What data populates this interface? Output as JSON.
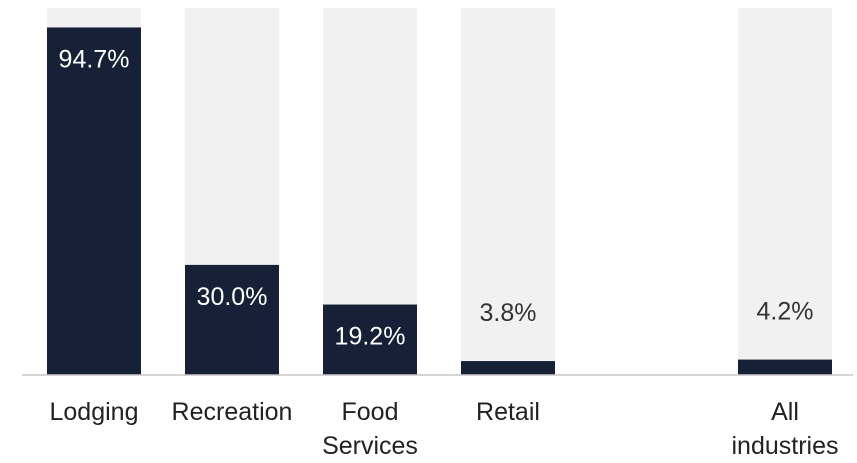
{
  "colors": {
    "bar": "#162036",
    "track": "#f1f1f1",
    "axis": "#c8c8c8",
    "label_on_bar": "#ffffff",
    "label_off_bar": "#333333"
  },
  "chart_data": {
    "type": "bar",
    "categories": [
      [
        "Lodging"
      ],
      [
        "Recreation"
      ],
      [
        "Food",
        "Services"
      ],
      [
        "Retail"
      ],
      [
        "All",
        "industries"
      ]
    ],
    "values": [
      94.7,
      30.0,
      19.2,
      3.8,
      4.2
    ],
    "value_labels": [
      "94.7%",
      "30.0%",
      "19.2%",
      "3.8%",
      "4.2%"
    ],
    "ylim": [
      0,
      100
    ],
    "grid": false,
    "legend": "none",
    "title": "",
    "xlabel": "",
    "ylabel": ""
  }
}
